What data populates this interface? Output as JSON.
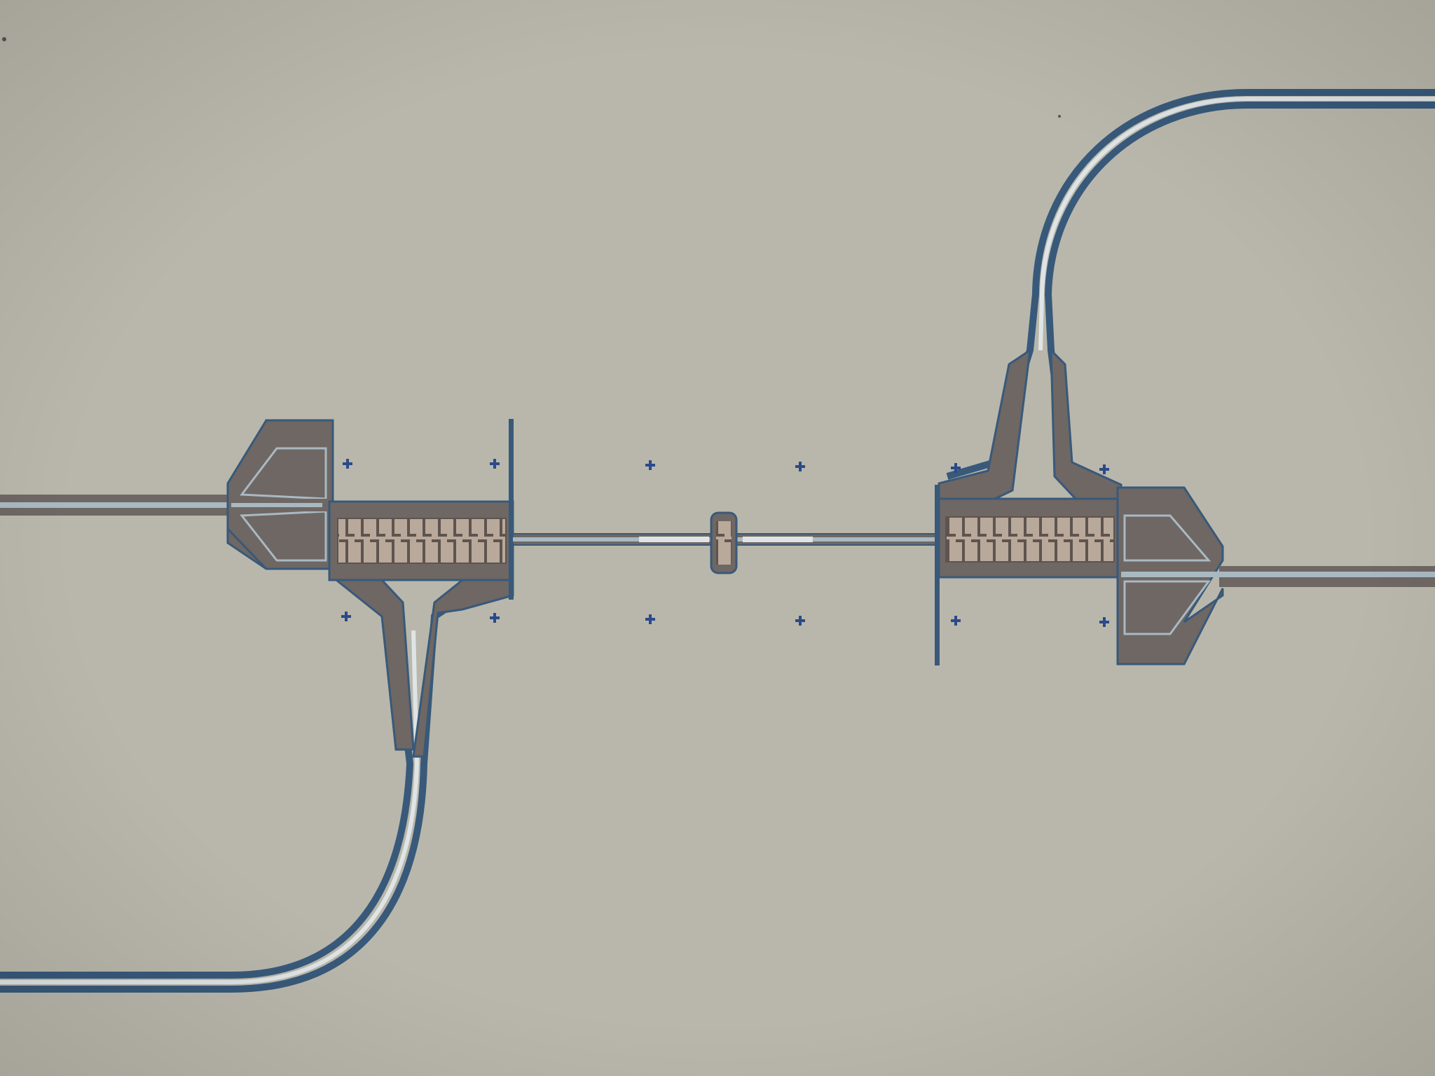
{
  "scene": {
    "kind": "optical micrograph",
    "colors": {
      "substrate": "#b9b7ab",
      "metal_fill": "#6e6764",
      "metal_edge": "#38597a",
      "highlight": "#dfe4e6",
      "slot": "#a9b9c2",
      "marker": "#2a4a8a",
      "meander": "#8e8178"
    },
    "icons": {
      "alignment_marker": "cross-marker-icon"
    }
  }
}
